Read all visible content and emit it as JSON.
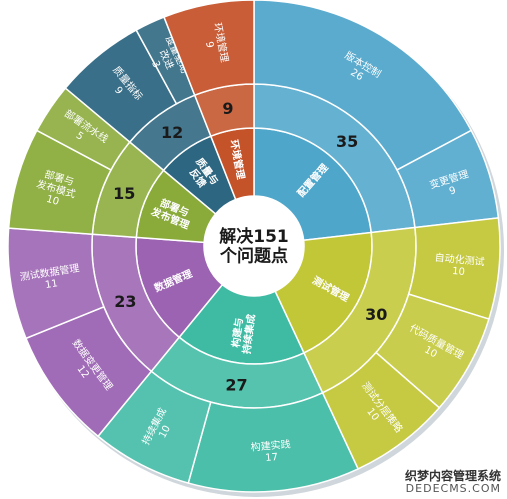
{
  "chart_data": {
    "type": "sunburst",
    "center_label": [
      "解决151",
      "个问题点"
    ],
    "total": 151,
    "categories": [
      {
        "label": [
          "配置管理"
        ],
        "value": 35,
        "color": "#4fa6cb",
        "children": [
          {
            "label": [
              "版本控制"
            ],
            "value": 26
          },
          {
            "label": [
              "变更管理"
            ],
            "value": 9
          }
        ]
      },
      {
        "label": [
          "测试管理"
        ],
        "value": 30,
        "color": "#c2c737",
        "children": [
          {
            "label": [
              "自动化测试"
            ],
            "value": 10
          },
          {
            "label": [
              "代码质量管理"
            ],
            "value": 10
          },
          {
            "label": [
              "测试分层策略"
            ],
            "value": 10
          }
        ]
      },
      {
        "label": [
          "构建与",
          "持续集成"
        ],
        "value": 27,
        "color": "#3fbba4",
        "children": [
          {
            "label": [
              "构建实践"
            ],
            "value": 17
          },
          {
            "label": [
              "持续集成"
            ],
            "value": 10
          }
        ]
      },
      {
        "label": [
          "数据管理"
        ],
        "value": 23,
        "color": "#9b63b2",
        "children": [
          {
            "label": [
              "数据变更管理"
            ],
            "value": 12
          },
          {
            "label": [
              "测试数据管理"
            ],
            "value": 11
          }
        ]
      },
      {
        "label": [
          "部署与",
          "发布管理"
        ],
        "value": 15,
        "color": "#8aab3a",
        "children": [
          {
            "label": [
              "部署与",
              "发布模式"
            ],
            "value": 10
          },
          {
            "label": [
              "部署流水线"
            ],
            "value": 5
          }
        ]
      },
      {
        "label": [
          "质量与",
          "反馈"
        ],
        "value": 12,
        "color": "#2c6680",
        "children": [
          {
            "label": [
              "质量指标"
            ],
            "value": 9
          },
          {
            "label": [
              "度量驱动",
              "改进"
            ],
            "value": 3
          }
        ]
      },
      {
        "label": [
          "环境管理"
        ],
        "value": 9,
        "color": "#c4532a",
        "children": [
          {
            "label": [
              "环境管理"
            ],
            "value": 9
          }
        ]
      }
    ]
  },
  "watermark": {
    "line1": "织梦内容管理系统",
    "line2": "DEDECMS.COM"
  }
}
